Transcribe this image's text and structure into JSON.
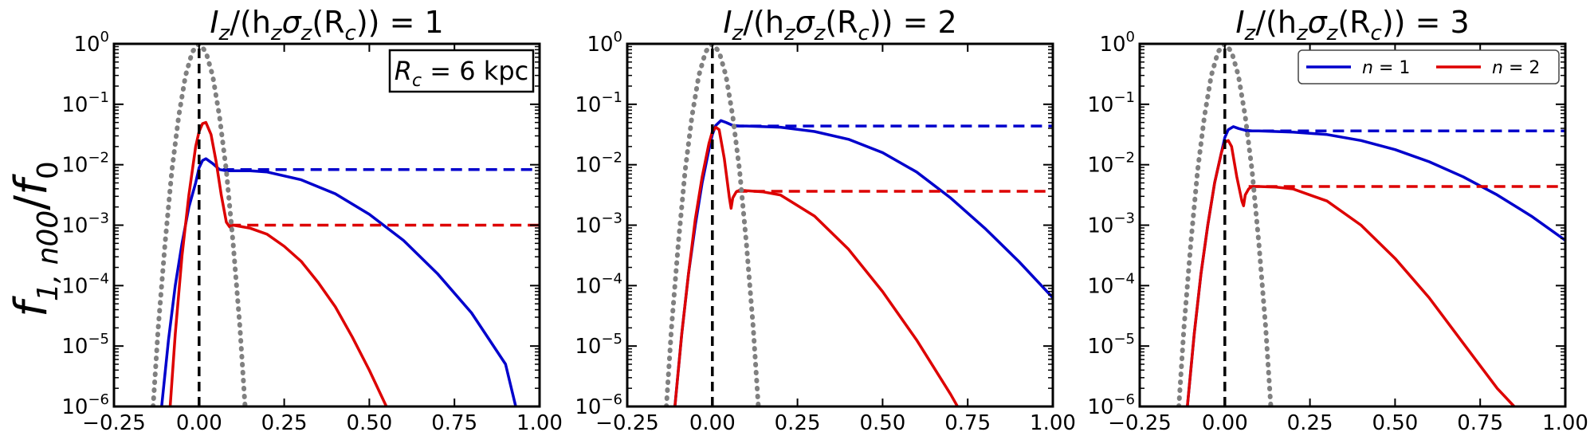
{
  "figure": {
    "ylabel": "f1,n00/f0",
    "ylabel_parts": {
      "f": "f",
      "sub": "1, n00",
      "slash": "/",
      "f0": "f",
      "sub0": "0"
    }
  },
  "chart_data": [
    {
      "type": "line",
      "title": "Iz/(hzσz(Rc)) = 1",
      "title_parts": {
        "I": "I",
        "Isub": "z",
        "mid": "/(h",
        "hsub": "z",
        "sig": "σ",
        "sigsub": "z",
        "arg": "(R",
        "rsub": "c",
        "tail": ")) = 1"
      },
      "xlim": [
        -0.25,
        1.0
      ],
      "ylim_exp": [
        -6,
        0
      ],
      "yscale": "log",
      "xticks": [
        "−0.25",
        "0.00",
        "0.25",
        "0.50",
        "0.75",
        "1.00"
      ],
      "xtick_values": [
        -0.25,
        0.0,
        0.25,
        0.5,
        0.75,
        1.0
      ],
      "yticks": [
        {
          "base": "10",
          "exp": "0",
          "value": 0
        },
        {
          "base": "10",
          "exp": "−1",
          "value": -1
        },
        {
          "base": "10",
          "exp": "−2",
          "value": -2
        },
        {
          "base": "10",
          "exp": "−3",
          "value": -3
        },
        {
          "base": "10",
          "exp": "−4",
          "value": -4
        },
        {
          "base": "10",
          "exp": "−5",
          "value": -5
        },
        {
          "base": "10",
          "exp": "−6",
          "value": -6
        }
      ],
      "annotation": {
        "R": "R",
        "sub": "c",
        "text": " = 6 kpc"
      },
      "series": [
        {
          "color": "#0000cc",
          "style": "solid",
          "x": [
            -0.11,
            -0.09,
            -0.07,
            -0.05,
            -0.03,
            -0.01,
            0.0,
            0.01,
            0.02,
            0.04,
            0.06,
            0.08,
            0.1,
            0.15,
            0.2,
            0.3,
            0.4,
            0.5,
            0.6,
            0.7,
            0.8,
            0.9,
            0.93
          ],
          "logy": [
            -6.0,
            -4.9,
            -4.0,
            -3.3,
            -2.7,
            -2.3,
            -2.05,
            -1.93,
            -1.9,
            -1.98,
            -2.08,
            -2.1,
            -2.1,
            -2.1,
            -2.12,
            -2.25,
            -2.48,
            -2.82,
            -3.25,
            -3.8,
            -4.45,
            -5.3,
            -6.0
          ]
        },
        {
          "color": "#0000cc",
          "style": "dashed",
          "x": [
            0.07,
            1.0
          ],
          "logy": [
            -2.08,
            -2.08
          ]
        },
        {
          "color": "#dd0000",
          "style": "solid",
          "x": [
            -0.085,
            -0.07,
            -0.05,
            -0.03,
            -0.01,
            0.0,
            0.01,
            0.02,
            0.035,
            0.05,
            0.065,
            0.08,
            0.09,
            0.1,
            0.12,
            0.15,
            0.2,
            0.25,
            0.3,
            0.35,
            0.4,
            0.45,
            0.5,
            0.55
          ],
          "logy": [
            -6.0,
            -4.8,
            -3.5,
            -2.5,
            -1.7,
            -1.45,
            -1.32,
            -1.3,
            -1.5,
            -1.95,
            -2.5,
            -2.95,
            -3.03,
            -3.0,
            -3.02,
            -3.05,
            -3.15,
            -3.35,
            -3.6,
            -3.95,
            -4.35,
            -4.85,
            -5.4,
            -6.0
          ]
        },
        {
          "color": "#dd0000",
          "style": "dashed",
          "x": [
            0.09,
            1.0
          ],
          "logy": [
            -3.0,
            -3.0
          ]
        },
        {
          "color": "#808080",
          "style": "dotted",
          "x": [
            -0.135,
            -0.12,
            -0.1,
            -0.08,
            -0.06,
            -0.04,
            -0.02,
            0.0,
            0.02,
            0.04,
            0.06,
            0.08,
            0.1,
            0.12,
            0.135
          ],
          "logy": [
            -6.0,
            -4.7,
            -3.3,
            -2.1,
            -1.2,
            -0.53,
            -0.13,
            0.0,
            -0.13,
            -0.53,
            -1.2,
            -2.1,
            -3.3,
            -4.7,
            -6.0
          ]
        },
        {
          "color": "#000000",
          "style": "dashed",
          "x": [
            0.0,
            0.0
          ],
          "logy": [
            -6.0,
            0.0
          ]
        }
      ]
    },
    {
      "type": "line",
      "title": "Iz/(hzσz(Rc)) = 2",
      "title_parts": {
        "I": "I",
        "Isub": "z",
        "mid": "/(h",
        "hsub": "z",
        "sig": "σ",
        "sigsub": "z",
        "arg": "(R",
        "rsub": "c",
        "tail": ")) = 2"
      },
      "xlim": [
        -0.25,
        1.0
      ],
      "ylim_exp": [
        -6,
        0
      ],
      "yscale": "log",
      "xticks": [
        "−0.25",
        "0.00",
        "0.25",
        "0.50",
        "0.75",
        "1.00"
      ],
      "xtick_values": [
        -0.25,
        0.0,
        0.25,
        0.5,
        0.75,
        1.0
      ],
      "yticks": [
        {
          "base": "10",
          "exp": "0",
          "value": 0
        },
        {
          "base": "10",
          "exp": "−1",
          "value": -1
        },
        {
          "base": "10",
          "exp": "−2",
          "value": -2
        },
        {
          "base": "10",
          "exp": "−3",
          "value": -3
        },
        {
          "base": "10",
          "exp": "−4",
          "value": -4
        },
        {
          "base": "10",
          "exp": "−5",
          "value": -5
        },
        {
          "base": "10",
          "exp": "−6",
          "value": -6
        }
      ],
      "series": [
        {
          "color": "#0000cc",
          "style": "solid",
          "x": [
            -0.11,
            -0.09,
            -0.07,
            -0.05,
            -0.03,
            -0.01,
            0.0,
            0.01,
            0.025,
            0.04,
            0.06,
            0.08,
            0.1,
            0.15,
            0.2,
            0.3,
            0.4,
            0.5,
            0.6,
            0.7,
            0.8,
            0.9,
            1.0
          ],
          "logy": [
            -6.0,
            -4.8,
            -3.8,
            -3.0,
            -2.3,
            -1.75,
            -1.5,
            -1.35,
            -1.27,
            -1.3,
            -1.35,
            -1.36,
            -1.36,
            -1.37,
            -1.38,
            -1.45,
            -1.58,
            -1.8,
            -2.12,
            -2.55,
            -3.05,
            -3.6,
            -4.2
          ]
        },
        {
          "color": "#0000cc",
          "style": "dashed",
          "x": [
            0.06,
            1.0
          ],
          "logy": [
            -1.36,
            -1.36
          ]
        },
        {
          "color": "#dd0000",
          "style": "solid",
          "x": [
            -0.11,
            -0.09,
            -0.07,
            -0.05,
            -0.03,
            -0.01,
            0.0,
            0.01,
            0.02,
            0.035,
            0.05,
            0.055,
            0.06,
            0.07,
            0.08,
            0.1,
            0.15,
            0.2,
            0.3,
            0.4,
            0.5,
            0.6,
            0.7,
            0.72
          ],
          "logy": [
            -6.0,
            -4.8,
            -3.8,
            -2.9,
            -2.2,
            -1.65,
            -1.45,
            -1.38,
            -1.42,
            -1.9,
            -2.55,
            -2.72,
            -2.55,
            -2.45,
            -2.42,
            -2.43,
            -2.45,
            -2.5,
            -2.85,
            -3.4,
            -4.1,
            -4.9,
            -5.8,
            -6.0
          ]
        },
        {
          "color": "#dd0000",
          "style": "dashed",
          "x": [
            0.07,
            1.0
          ],
          "logy": [
            -2.44,
            -2.44
          ]
        },
        {
          "color": "#808080",
          "style": "dotted",
          "x": [
            -0.135,
            -0.12,
            -0.1,
            -0.08,
            -0.06,
            -0.04,
            -0.02,
            0.0,
            0.02,
            0.04,
            0.06,
            0.08,
            0.1,
            0.12,
            0.135
          ],
          "logy": [
            -6.0,
            -4.7,
            -3.3,
            -2.1,
            -1.2,
            -0.53,
            -0.13,
            0.0,
            -0.13,
            -0.53,
            -1.2,
            -2.1,
            -3.3,
            -4.7,
            -6.0
          ]
        },
        {
          "color": "#000000",
          "style": "dashed",
          "x": [
            0.0,
            0.0
          ],
          "logy": [
            -6.0,
            0.0
          ]
        }
      ]
    },
    {
      "type": "line",
      "title": "Iz/(hzσz(Rc)) = 3",
      "title_parts": {
        "I": "I",
        "Isub": "z",
        "mid": "/(h",
        "hsub": "z",
        "sig": "σ",
        "sigsub": "z",
        "arg": "(R",
        "rsub": "c",
        "tail": ")) = 3"
      },
      "xlim": [
        -0.25,
        1.0
      ],
      "ylim_exp": [
        -6,
        0
      ],
      "yscale": "log",
      "xticks": [
        "−0.25",
        "0.00",
        "0.25",
        "0.50",
        "0.75",
        "1.00"
      ],
      "xtick_values": [
        -0.25,
        0.0,
        0.25,
        0.5,
        0.75,
        1.0
      ],
      "yticks": [
        {
          "base": "10",
          "exp": "0",
          "value": 0
        },
        {
          "base": "10",
          "exp": "−1",
          "value": -1
        },
        {
          "base": "10",
          "exp": "−2",
          "value": -2
        },
        {
          "base": "10",
          "exp": "−3",
          "value": -3
        },
        {
          "base": "10",
          "exp": "−4",
          "value": -4
        },
        {
          "base": "10",
          "exp": "−5",
          "value": -5
        },
        {
          "base": "10",
          "exp": "−6",
          "value": -6
        }
      ],
      "legend": {
        "placement": "top-right",
        "entries": [
          {
            "n": "n",
            "text": " = 1",
            "color": "#0000cc"
          },
          {
            "n": "n",
            "text": " = 2",
            "color": "#dd0000"
          }
        ]
      },
      "series": [
        {
          "color": "#0000cc",
          "style": "solid",
          "x": [
            -0.11,
            -0.09,
            -0.07,
            -0.05,
            -0.03,
            -0.01,
            0.0,
            0.01,
            0.025,
            0.04,
            0.06,
            0.08,
            0.1,
            0.15,
            0.2,
            0.3,
            0.4,
            0.5,
            0.6,
            0.7,
            0.8,
            0.9,
            1.0
          ],
          "logy": [
            -6.0,
            -4.8,
            -3.8,
            -3.0,
            -2.3,
            -1.8,
            -1.55,
            -1.42,
            -1.37,
            -1.4,
            -1.43,
            -1.44,
            -1.44,
            -1.45,
            -1.46,
            -1.5,
            -1.6,
            -1.75,
            -1.95,
            -2.2,
            -2.5,
            -2.85,
            -3.25
          ]
        },
        {
          "color": "#0000cc",
          "style": "dashed",
          "x": [
            0.06,
            1.0
          ],
          "logy": [
            -1.44,
            -1.44
          ]
        },
        {
          "color": "#dd0000",
          "style": "solid",
          "x": [
            -0.11,
            -0.09,
            -0.07,
            -0.05,
            -0.03,
            -0.01,
            0.0,
            0.01,
            0.02,
            0.035,
            0.05,
            0.055,
            0.06,
            0.07,
            0.08,
            0.1,
            0.15,
            0.2,
            0.3,
            0.4,
            0.5,
            0.6,
            0.7,
            0.8,
            0.85
          ],
          "logy": [
            -6.0,
            -4.8,
            -3.8,
            -3.0,
            -2.3,
            -1.8,
            -1.63,
            -1.6,
            -1.7,
            -2.2,
            -2.6,
            -2.68,
            -2.5,
            -2.4,
            -2.36,
            -2.36,
            -2.37,
            -2.4,
            -2.6,
            -3.0,
            -3.55,
            -4.2,
            -4.95,
            -5.7,
            -6.0
          ]
        },
        {
          "color": "#dd0000",
          "style": "dashed",
          "x": [
            0.07,
            1.0
          ],
          "logy": [
            -2.36,
            -2.36
          ]
        },
        {
          "color": "#808080",
          "style": "dotted",
          "x": [
            -0.135,
            -0.12,
            -0.1,
            -0.08,
            -0.06,
            -0.04,
            -0.02,
            0.0,
            0.02,
            0.04,
            0.06,
            0.08,
            0.1,
            0.12,
            0.135
          ],
          "logy": [
            -6.0,
            -4.7,
            -3.3,
            -2.1,
            -1.2,
            -0.53,
            -0.13,
            0.0,
            -0.13,
            -0.53,
            -1.2,
            -2.1,
            -3.3,
            -4.7,
            -6.0
          ]
        },
        {
          "color": "#000000",
          "style": "dashed",
          "x": [
            0.0,
            0.0
          ],
          "logy": [
            -6.0,
            0.0
          ]
        }
      ]
    }
  ]
}
